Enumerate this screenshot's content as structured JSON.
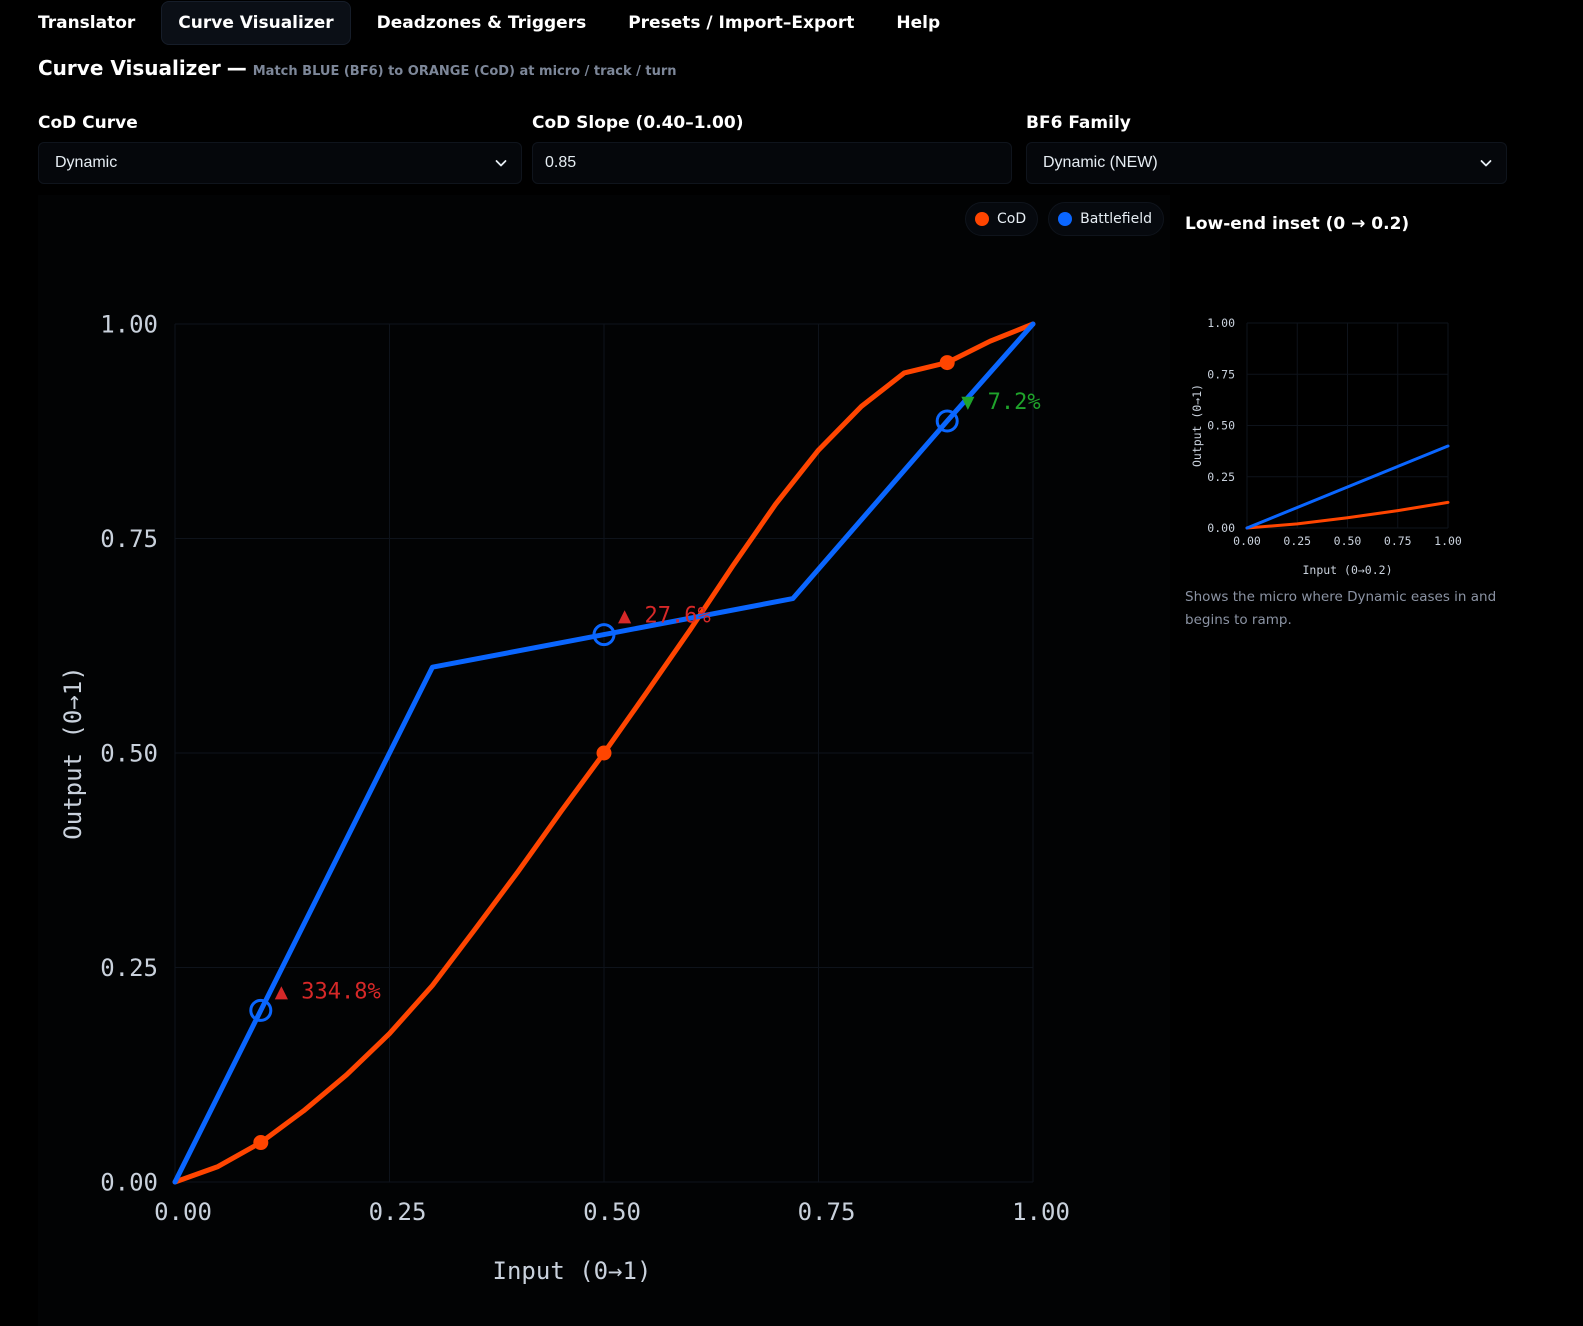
{
  "tabs": [
    {
      "label": "Translator",
      "active": false
    },
    {
      "label": "Curve Visualizer",
      "active": true
    },
    {
      "label": "Deadzones & Triggers",
      "active": false
    },
    {
      "label": "Presets / Import–Export",
      "active": false
    },
    {
      "label": "Help",
      "active": false
    }
  ],
  "header": {
    "title": "Curve Visualizer",
    "dash": "—",
    "subtitle": "Match BLUE (BF6) to ORANGE (CoD) at micro / track / turn"
  },
  "controls": {
    "cod_curve": {
      "label": "CoD Curve",
      "value": "Dynamic"
    },
    "cod_slope": {
      "label": "CoD Slope (0.40–1.00)",
      "value": "0.85"
    },
    "bf6_family": {
      "label": "BF6 Family",
      "value": "Dynamic (NEW)"
    }
  },
  "legend": [
    {
      "name": "CoD",
      "color": "#ff4500"
    },
    {
      "name": "Battlefield",
      "color": "#0a66ff"
    }
  ],
  "colors": {
    "cod": "#ff4500",
    "bf6": "#0a66ff",
    "up": "#d62828",
    "down": "#1fa32b"
  },
  "chart_data": [
    {
      "type": "line",
      "xlabel": "Input (0→1)",
      "ylabel": "Output (0→1)",
      "xlim": [
        0,
        1
      ],
      "ylim": [
        0,
        1
      ],
      "x_ticks": [
        "0.00",
        "0.25",
        "0.50",
        "0.75",
        "1.00"
      ],
      "y_ticks": [
        "0.00",
        "0.25",
        "0.50",
        "0.75",
        "1.00"
      ],
      "grid": true,
      "series": [
        {
          "name": "CoD",
          "x": [
            0,
            0.05,
            0.1,
            0.15,
            0.2,
            0.25,
            0.3,
            0.35,
            0.4,
            0.45,
            0.5,
            0.55,
            0.6,
            0.65,
            0.7,
            0.75,
            0.8,
            0.85,
            0.9,
            0.95,
            1.0
          ],
          "y": [
            0,
            0.018,
            0.046,
            0.083,
            0.125,
            0.173,
            0.229,
            0.295,
            0.362,
            0.432,
            0.5,
            0.571,
            0.643,
            0.718,
            0.79,
            0.853,
            0.904,
            0.943,
            0.955,
            0.98,
            1.0
          ]
        },
        {
          "name": "Battlefield",
          "x": [
            0,
            0.1,
            0.3,
            0.5,
            0.72,
            0.9,
            1.0
          ],
          "y": [
            0,
            0.2,
            0.6,
            0.638,
            0.68,
            0.887,
            1.0
          ]
        }
      ],
      "markers": [
        {
          "x": 0.1,
          "cod_y": 0.046,
          "bf6_y": 0.2,
          "label": "▲ 334.8%",
          "dir": "up"
        },
        {
          "x": 0.5,
          "cod_y": 0.5,
          "bf6_y": 0.638,
          "label": "▲ 27.6%",
          "dir": "up"
        },
        {
          "x": 0.9,
          "cod_y": 0.955,
          "bf6_y": 0.887,
          "label": "▼ 7.2%",
          "dir": "down"
        }
      ]
    },
    {
      "type": "line",
      "title": "Low-end inset (0 → 0.2)",
      "xlabel": "Input (0→0.2)",
      "ylabel": "Output (0→1)",
      "xlim": [
        0,
        1
      ],
      "ylim": [
        0,
        1
      ],
      "x_ticks": [
        "0.00",
        "0.25",
        "0.50",
        "0.75",
        "1.00"
      ],
      "y_ticks": [
        "0.00",
        "0.25",
        "0.50",
        "0.75",
        "1.00"
      ],
      "series": [
        {
          "name": "CoD",
          "x": [
            0,
            0.25,
            0.5,
            0.75,
            1.0
          ],
          "y": [
            0,
            0.02,
            0.05,
            0.085,
            0.125
          ]
        },
        {
          "name": "Battlefield",
          "x": [
            0,
            1.0
          ],
          "y": [
            0,
            0.4
          ]
        }
      ]
    }
  ],
  "inset": {
    "title": "Low-end inset (0 → 0.2)",
    "note": "Shows the micro where Dynamic eases in and begins to ramp."
  }
}
